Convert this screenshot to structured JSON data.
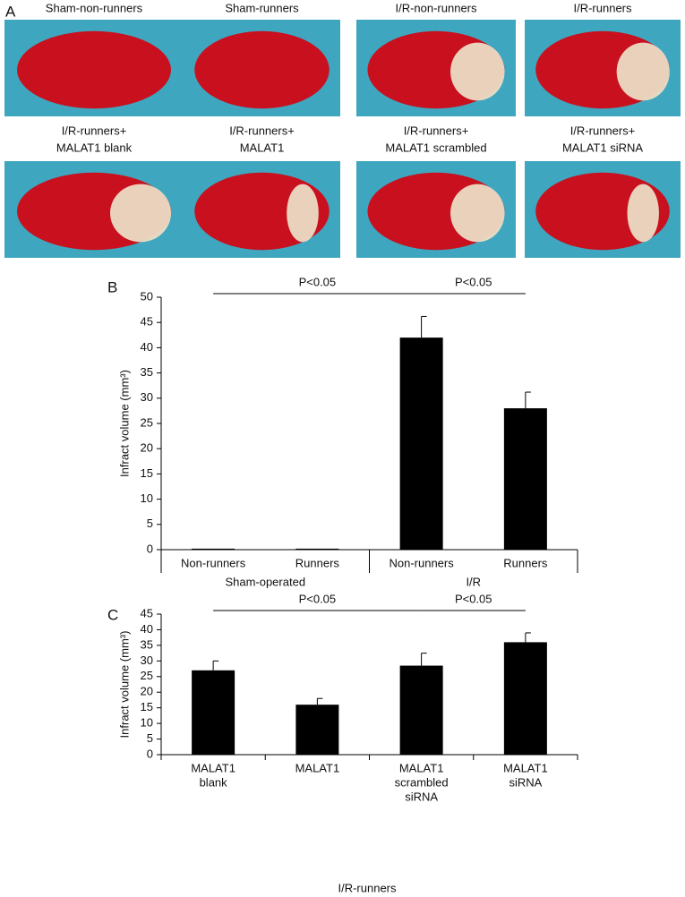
{
  "panel_a": {
    "label": "A",
    "row1": [
      "Sham-non-runners",
      "Sham-runners",
      "I/R-non-runners",
      "I/R-runners"
    ],
    "row2": [
      [
        "I/R-runners+",
        "MALAT1 blank"
      ],
      [
        "I/R-runners+",
        "MALAT1"
      ],
      [
        "I/R-runners+",
        "MALAT1 scrambled"
      ],
      [
        "I/R-runners+",
        "MALAT1 siRNA"
      ]
    ]
  },
  "chart_data": [
    {
      "type": "bar",
      "panel": "B",
      "ylabel": "Infract volume (mm³)",
      "categories": [
        [
          "Non-runners"
        ],
        [
          "Runners"
        ],
        [
          "Non-runners"
        ],
        [
          "Runners"
        ]
      ],
      "groups": [
        "Sham-operated",
        "I/R"
      ],
      "values": [
        0.2,
        0.2,
        42,
        28
      ],
      "errors": [
        0,
        0,
        4.2,
        3.2
      ],
      "color": "#000000",
      "ylim": [
        0,
        50
      ],
      "yticks": [
        0,
        5,
        10,
        15,
        20,
        25,
        30,
        35,
        40,
        45,
        50
      ],
      "annotations": [
        "P<0.05",
        "P<0.05"
      ]
    },
    {
      "type": "bar",
      "panel": "C",
      "ylabel": "Infract volume (mm³)",
      "xlabel": "I/R-runners",
      "categories": [
        [
          "MALAT1",
          "blank"
        ],
        [
          "MALAT1"
        ],
        [
          "MALAT1",
          "scrambled",
          "siRNA"
        ],
        [
          "MALAT1",
          "siRNA"
        ]
      ],
      "values": [
        27,
        16,
        28.5,
        36
      ],
      "errors": [
        3,
        2,
        4,
        3
      ],
      "color": "#000000",
      "ylim": [
        0,
        45
      ],
      "yticks": [
        0,
        5,
        10,
        15,
        20,
        25,
        30,
        35,
        40,
        45
      ],
      "annotations": [
        "P<0.05",
        "P<0.05"
      ]
    }
  ]
}
